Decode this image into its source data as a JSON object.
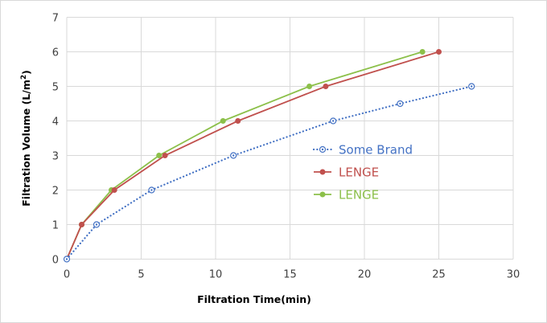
{
  "chart_data": {
    "type": "line",
    "title": "",
    "xlabel": "Filtration Time(min)",
    "ylabel_main": "Filtration Volume (L/m",
    "ylabel_sup": "2",
    "ylabel_end": ")",
    "xlim": [
      0,
      30
    ],
    "ylim": [
      0,
      7
    ],
    "xticks": [
      "0",
      "5",
      "10",
      "15",
      "20",
      "25",
      "30"
    ],
    "yticks": [
      "0",
      "1",
      "2",
      "3",
      "4",
      "5",
      "6",
      "7"
    ],
    "grid": true,
    "legend_position": "center-right",
    "series": [
      {
        "name": "Some Brand",
        "color": "#4472c4",
        "style": "dotted",
        "marker": "open-circle",
        "x": [
          0,
          2.0,
          5.7,
          11.2,
          17.9,
          22.4,
          27.2
        ],
        "y": [
          0,
          1,
          2,
          3,
          4,
          4.5,
          5
        ]
      },
      {
        "name": "LENGE",
        "color": "#c0504d",
        "style": "solid",
        "marker": "circle",
        "x": [
          0,
          1.0,
          3.2,
          6.6,
          11.5,
          17.4,
          25.0
        ],
        "y": [
          0,
          1,
          2,
          3,
          4,
          5,
          6
        ]
      },
      {
        "name": "LENGE",
        "color": "#8cc04a",
        "style": "solid",
        "marker": "circle",
        "x": [
          0,
          1.0,
          3.0,
          6.2,
          10.5,
          16.3,
          23.9
        ],
        "y": [
          0,
          1,
          2,
          3,
          4,
          5,
          6
        ]
      }
    ]
  }
}
